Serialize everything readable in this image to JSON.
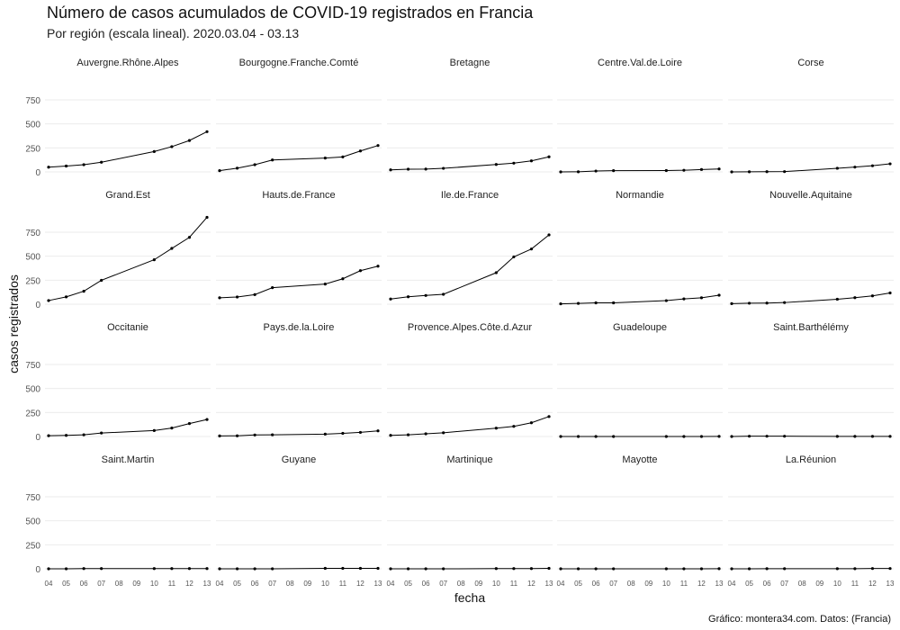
{
  "title": "Número de casos acumulados de COVID-19 registrados en Francia",
  "subtitle": "Por región (escala lineal). 2020.03.04 - 03.13",
  "caption": "Gráfico: montera34.com. Datos:  (Francia)",
  "chart_data": {
    "type": "line",
    "layout": "small-multiples",
    "xlabel": "fecha",
    "ylabel": "casos registrados",
    "x": [
      "04",
      "05",
      "06",
      "07",
      "10",
      "11",
      "12",
      "13"
    ],
    "x_day_numbers": [
      4,
      5,
      6,
      7,
      10,
      11,
      12,
      13
    ],
    "x_ticks": [
      "04",
      "05",
      "06",
      "07",
      "08",
      "09",
      "10",
      "11",
      "12",
      "13"
    ],
    "xlim": [
      4,
      13
    ],
    "ylim": [
      0,
      900
    ],
    "y_ticks": [
      0,
      250,
      500,
      750
    ],
    "grid": true,
    "series": [
      {
        "name": "Auvergne.Rhône.Alpes",
        "values": [
          49,
          61,
          75,
          101,
          212,
          263,
          327,
          419
        ]
      },
      {
        "name": "Bourgogne.Franche.Comté",
        "values": [
          13,
          39,
          75,
          124,
          144,
          156,
          218,
          275
        ]
      },
      {
        "name": "Bretagne",
        "values": [
          21,
          28,
          29,
          37,
          77,
          91,
          115,
          157
        ]
      },
      {
        "name": "Centre.Val.de.Loire",
        "values": [
          0,
          1,
          9,
          13,
          14,
          17,
          25,
          31
        ]
      },
      {
        "name": "Corse",
        "values": [
          0,
          1,
          2,
          3,
          38,
          50,
          64,
          84
        ]
      },
      {
        "name": "Grand.Est",
        "values": [
          38,
          76,
          135,
          249,
          463,
          581,
          696,
          905
        ]
      },
      {
        "name": "Hauts.de.France",
        "values": [
          67,
          75,
          100,
          172,
          210,
          265,
          349,
          396
        ]
      },
      {
        "name": "Ile.de.France",
        "values": [
          54,
          77,
          91,
          103,
          328,
          493,
          575,
          722
        ]
      },
      {
        "name": "Normandie",
        "values": [
          4,
          8,
          14,
          14,
          37,
          55,
          67,
          94
        ]
      },
      {
        "name": "Nouvelle.Aquitaine",
        "values": [
          6,
          10,
          12,
          17,
          52,
          68,
          87,
          117
        ]
      },
      {
        "name": "Occitanie",
        "values": [
          8,
          12,
          18,
          36,
          62,
          88,
          135,
          177
        ]
      },
      {
        "name": "Pays.de.la.Loire",
        "values": [
          6,
          7,
          16,
          18,
          25,
          33,
          43,
          59
        ]
      },
      {
        "name": "Provence.Alpes.Côte.d.Azur",
        "values": [
          12,
          18,
          28,
          39,
          87,
          106,
          143,
          208
        ]
      },
      {
        "name": "Guadeloupe",
        "values": [
          0,
          0,
          0,
          0,
          0,
          0,
          0,
          1
        ]
      },
      {
        "name": "Saint.Barthélémy",
        "values": [
          0,
          3,
          3,
          3,
          1,
          1,
          1,
          1
        ]
      },
      {
        "name": "Saint.Martin",
        "values": [
          0,
          0,
          2,
          2,
          2,
          2,
          2,
          2
        ]
      },
      {
        "name": "Guyane",
        "values": [
          0,
          0,
          0,
          0,
          5,
          5,
          5,
          5
        ]
      },
      {
        "name": "Martinique",
        "values": [
          0,
          0,
          0,
          0,
          2,
          2,
          2,
          5
        ]
      },
      {
        "name": "Mayotte",
        "values": [
          0,
          0,
          0,
          0,
          0,
          0,
          0,
          1
        ]
      },
      {
        "name": "La.Réunion",
        "values": [
          0,
          0,
          1,
          1,
          1,
          1,
          3,
          3
        ]
      }
    ]
  }
}
